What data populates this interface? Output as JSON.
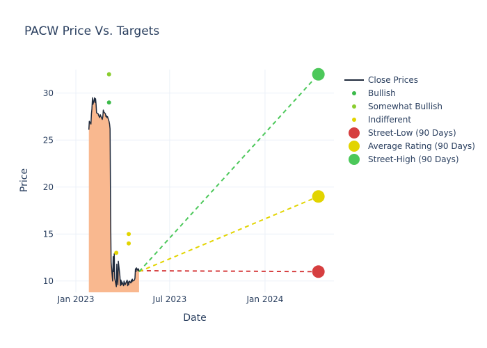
{
  "chart_data": {
    "type": "line",
    "title": "PACW Price Vs. Targets",
    "xlabel": "Date",
    "ylabel": "Price",
    "xlim": [
      "2022-11-23",
      "2024-05-13"
    ],
    "ylim": [
      8.8,
      32.5
    ],
    "x_ticks": [
      {
        "date": "2023-01-01",
        "label": "Jan 2023"
      },
      {
        "date": "2023-07-01",
        "label": "Jul 2023"
      },
      {
        "date": "2024-01-01",
        "label": "Jan 2024"
      }
    ],
    "y_ticks": [
      10,
      15,
      20,
      25,
      30
    ],
    "grid": true,
    "legend_position": "right",
    "close_prices": {
      "name": "Close Prices",
      "color": "#1f2a3c",
      "fill_color": "#f9b88f",
      "points": [
        [
          "2023-01-26",
          26.1
        ],
        [
          "2023-01-27",
          27.0
        ],
        [
          "2023-01-30",
          26.7
        ],
        [
          "2023-01-31",
          27.8
        ],
        [
          "2023-02-01",
          28.3
        ],
        [
          "2023-02-02",
          29.5
        ],
        [
          "2023-02-03",
          28.8
        ],
        [
          "2023-02-06",
          29.5
        ],
        [
          "2023-02-07",
          29.0
        ],
        [
          "2023-02-08",
          29.4
        ],
        [
          "2023-02-09",
          28.8
        ],
        [
          "2023-02-10",
          27.9
        ],
        [
          "2023-02-13",
          27.8
        ],
        [
          "2023-02-14",
          27.6
        ],
        [
          "2023-02-15",
          27.5
        ],
        [
          "2023-02-16",
          27.4
        ],
        [
          "2023-02-17",
          27.7
        ],
        [
          "2023-02-21",
          27.2
        ],
        [
          "2023-02-22",
          27.5
        ],
        [
          "2023-02-23",
          28.2
        ],
        [
          "2023-02-24",
          28.0
        ],
        [
          "2023-02-27",
          27.8
        ],
        [
          "2023-02-28",
          27.5
        ],
        [
          "2023-03-01",
          27.6
        ],
        [
          "2023-03-02",
          27.4
        ],
        [
          "2023-03-03",
          27.5
        ],
        [
          "2023-03-06",
          27.0
        ],
        [
          "2023-03-07",
          26.7
        ],
        [
          "2023-03-08",
          26.2
        ],
        [
          "2023-03-09",
          17.2
        ],
        [
          "2023-03-10",
          12.0
        ],
        [
          "2023-03-13",
          10.0
        ],
        [
          "2023-03-14",
          12.6
        ],
        [
          "2023-03-15",
          11.0
        ],
        [
          "2023-03-16",
          12.9
        ],
        [
          "2023-03-17",
          10.3
        ],
        [
          "2023-03-20",
          9.4
        ],
        [
          "2023-03-21",
          11.8
        ],
        [
          "2023-03-22",
          10.2
        ],
        [
          "2023-03-23",
          9.6
        ],
        [
          "2023-03-24",
          12.1
        ],
        [
          "2023-03-27",
          10.5
        ],
        [
          "2023-03-28",
          9.5
        ],
        [
          "2023-03-29",
          10.1
        ],
        [
          "2023-03-30",
          9.6
        ],
        [
          "2023-03-31",
          9.9
        ],
        [
          "2023-04-03",
          9.5
        ],
        [
          "2023-04-04",
          10.0
        ],
        [
          "2023-04-05",
          9.8
        ],
        [
          "2023-04-06",
          9.6
        ],
        [
          "2023-04-10",
          10.1
        ],
        [
          "2023-04-11",
          9.5
        ],
        [
          "2023-04-12",
          9.9
        ],
        [
          "2023-04-13",
          9.6
        ],
        [
          "2023-04-14",
          10.0
        ],
        [
          "2023-04-17",
          9.8
        ],
        [
          "2023-04-18",
          10.1
        ],
        [
          "2023-04-19",
          9.9
        ],
        [
          "2023-04-20",
          10.2
        ],
        [
          "2023-04-21",
          10.0
        ],
        [
          "2023-04-24",
          10.1
        ],
        [
          "2023-04-25",
          10.3
        ],
        [
          "2023-04-26",
          11.3
        ],
        [
          "2023-04-27",
          11.0
        ],
        [
          "2023-04-28",
          11.4
        ],
        [
          "2023-05-01",
          11.1
        ],
        [
          "2023-05-02",
          11.3
        ],
        [
          "2023-05-03",
          11.0
        ]
      ]
    },
    "ratings": [
      {
        "name": "Bullish",
        "color": "#3cba4a",
        "points": [
          [
            "2023-03-06",
            29.0
          ]
        ]
      },
      {
        "name": "Somewhat Bullish",
        "color": "#8acd2f",
        "points": [
          [
            "2023-03-06",
            32.0
          ]
        ]
      },
      {
        "name": "Indifferent",
        "color": "#e2d400",
        "points": [
          [
            "2023-03-20",
            13.0
          ],
          [
            "2023-04-13",
            15.0
          ],
          [
            "2023-04-13",
            14.0
          ]
        ]
      }
    ],
    "targets": [
      {
        "name": "Street-Low (90 Days)",
        "color": "#d63e3f",
        "start": [
          "2023-05-03",
          11.1
        ],
        "end": [
          "2024-04-13",
          11.0
        ]
      },
      {
        "name": "Average Rating (90 Days)",
        "color": "#e2d400",
        "start": [
          "2023-05-03",
          11.0
        ],
        "end": [
          "2024-04-13",
          19.0
        ]
      },
      {
        "name": "Street-High (90 Days)",
        "color": "#4cc85a",
        "start": [
          "2023-05-03",
          11.0
        ],
        "end": [
          "2024-04-13",
          32.0
        ]
      }
    ]
  }
}
